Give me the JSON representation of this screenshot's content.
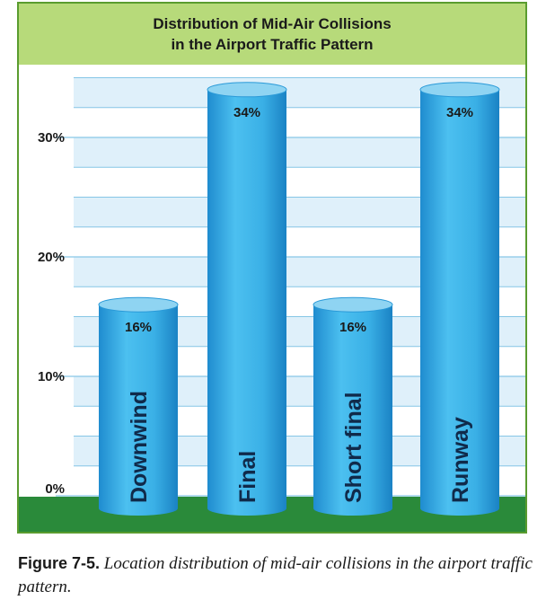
{
  "chart_data": {
    "type": "bar",
    "title": "Distribution of Mid-Air Collisions in the Airport Traffic Pattern",
    "title_lines": [
      "Distribution of Mid-Air Collisions",
      "in the Airport Traffic Pattern"
    ],
    "categories": [
      "Downwind",
      "Final",
      "Short final",
      "Runway"
    ],
    "values": [
      16,
      34,
      16,
      34
    ],
    "value_labels": [
      "16%",
      "34%",
      "16%",
      "34%"
    ],
    "yticks": [
      0,
      10,
      20,
      30
    ],
    "ytick_labels": [
      "0%",
      "10%",
      "20%",
      "30%"
    ],
    "ylim": [
      0,
      35
    ],
    "xlabel": "",
    "ylabel": "",
    "grid": true,
    "legend": "none"
  },
  "caption": {
    "label": "Figure 7-5.",
    "text": "Location distribution of mid-air collisions in the airport traffic pattern."
  },
  "colors": {
    "frame": "#5a9c2f",
    "title_band": "#b7da7a",
    "ground": "#2a8a3a",
    "bar": "#3bb0e6",
    "bar_top": "#8fd4f2",
    "grid_band": "#dff0fa",
    "grid_line": "#86c6e6",
    "text": "#1a1a1a"
  }
}
